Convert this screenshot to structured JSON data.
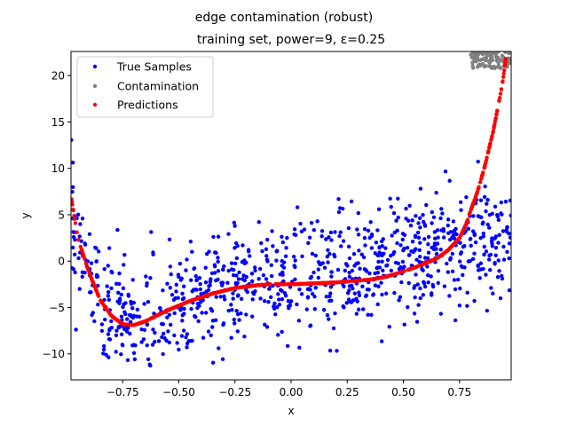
{
  "chart_data": {
    "type": "scatter",
    "title": "edge contamination (robust)",
    "subtitle": "training set, power=9, ε=0.25",
    "xlabel": "x",
    "ylabel": "y",
    "xlim": [
      -0.98,
      0.98
    ],
    "ylim": [
      -12.8,
      22.6
    ],
    "xticks": [
      -0.75,
      -0.5,
      -0.25,
      0.0,
      0.25,
      0.5,
      0.75
    ],
    "xtick_labels": [
      "−0.75",
      "−0.50",
      "−0.25",
      "0.00",
      "0.25",
      "0.50",
      "0.75"
    ],
    "yticks": [
      -10,
      -5,
      0,
      5,
      10,
      15,
      20
    ],
    "ytick_labels": [
      "−10",
      "−5",
      "0",
      "5",
      "10",
      "15",
      "20"
    ],
    "grid": false,
    "legend_position": "upper-left",
    "series": [
      {
        "name": "True Samples",
        "color": "#0000ff",
        "trend": {
          "x": [
            -0.98,
            -0.9,
            -0.8,
            -0.7,
            -0.6,
            -0.5,
            -0.4,
            -0.3,
            -0.2,
            -0.1,
            0.0,
            0.1,
            0.2,
            0.3,
            0.4,
            0.5,
            0.6,
            0.7,
            0.8,
            0.9,
            0.98
          ],
          "y": [
            5.0,
            -2.0,
            -5.5,
            -6.8,
            -6.2,
            -5.2,
            -4.2,
            -3.3,
            -2.6,
            -2.1,
            -1.8,
            -1.4,
            -1.0,
            -0.6,
            -0.1,
            0.4,
            0.9,
            1.4,
            1.9,
            2.5,
            3.2
          ]
        },
        "spread": 3.0,
        "count": 950
      },
      {
        "name": "Contamination",
        "color": "#808080",
        "x_range": [
          0.8,
          0.98
        ],
        "y_range": [
          20.8,
          23.0
        ],
        "count": 110
      },
      {
        "name": "Predictions",
        "color": "#ff0000",
        "curve": {
          "x": [
            -0.98,
            -0.95,
            -0.9,
            -0.85,
            -0.8,
            -0.75,
            -0.7,
            -0.65,
            -0.6,
            -0.55,
            -0.5,
            -0.45,
            -0.4,
            -0.35,
            -0.3,
            -0.25,
            -0.2,
            -0.15,
            -0.1,
            -0.05,
            0.0,
            0.05,
            0.1,
            0.15,
            0.2,
            0.25,
            0.3,
            0.35,
            0.4,
            0.45,
            0.5,
            0.55,
            0.6,
            0.65,
            0.7,
            0.75,
            0.78,
            0.8,
            0.83,
            0.86,
            0.88,
            0.9,
            0.92,
            0.94,
            0.96
          ],
          "y": [
            7.0,
            2.5,
            -1.2,
            -4.2,
            -5.9,
            -6.8,
            -6.9,
            -6.5,
            -5.9,
            -5.3,
            -4.8,
            -4.3,
            -3.9,
            -3.5,
            -3.2,
            -2.9,
            -2.75,
            -2.6,
            -2.5,
            -2.5,
            -2.5,
            -2.45,
            -2.4,
            -2.35,
            -2.3,
            -2.2,
            -2.1,
            -2.0,
            -1.8,
            -1.5,
            -1.1,
            -0.7,
            -0.2,
            0.3,
            1.2,
            2.5,
            4.0,
            5.5,
            7.5,
            10.0,
            12.0,
            14.0,
            16.5,
            19.0,
            22.5
          ]
        },
        "count": 900
      }
    ]
  }
}
